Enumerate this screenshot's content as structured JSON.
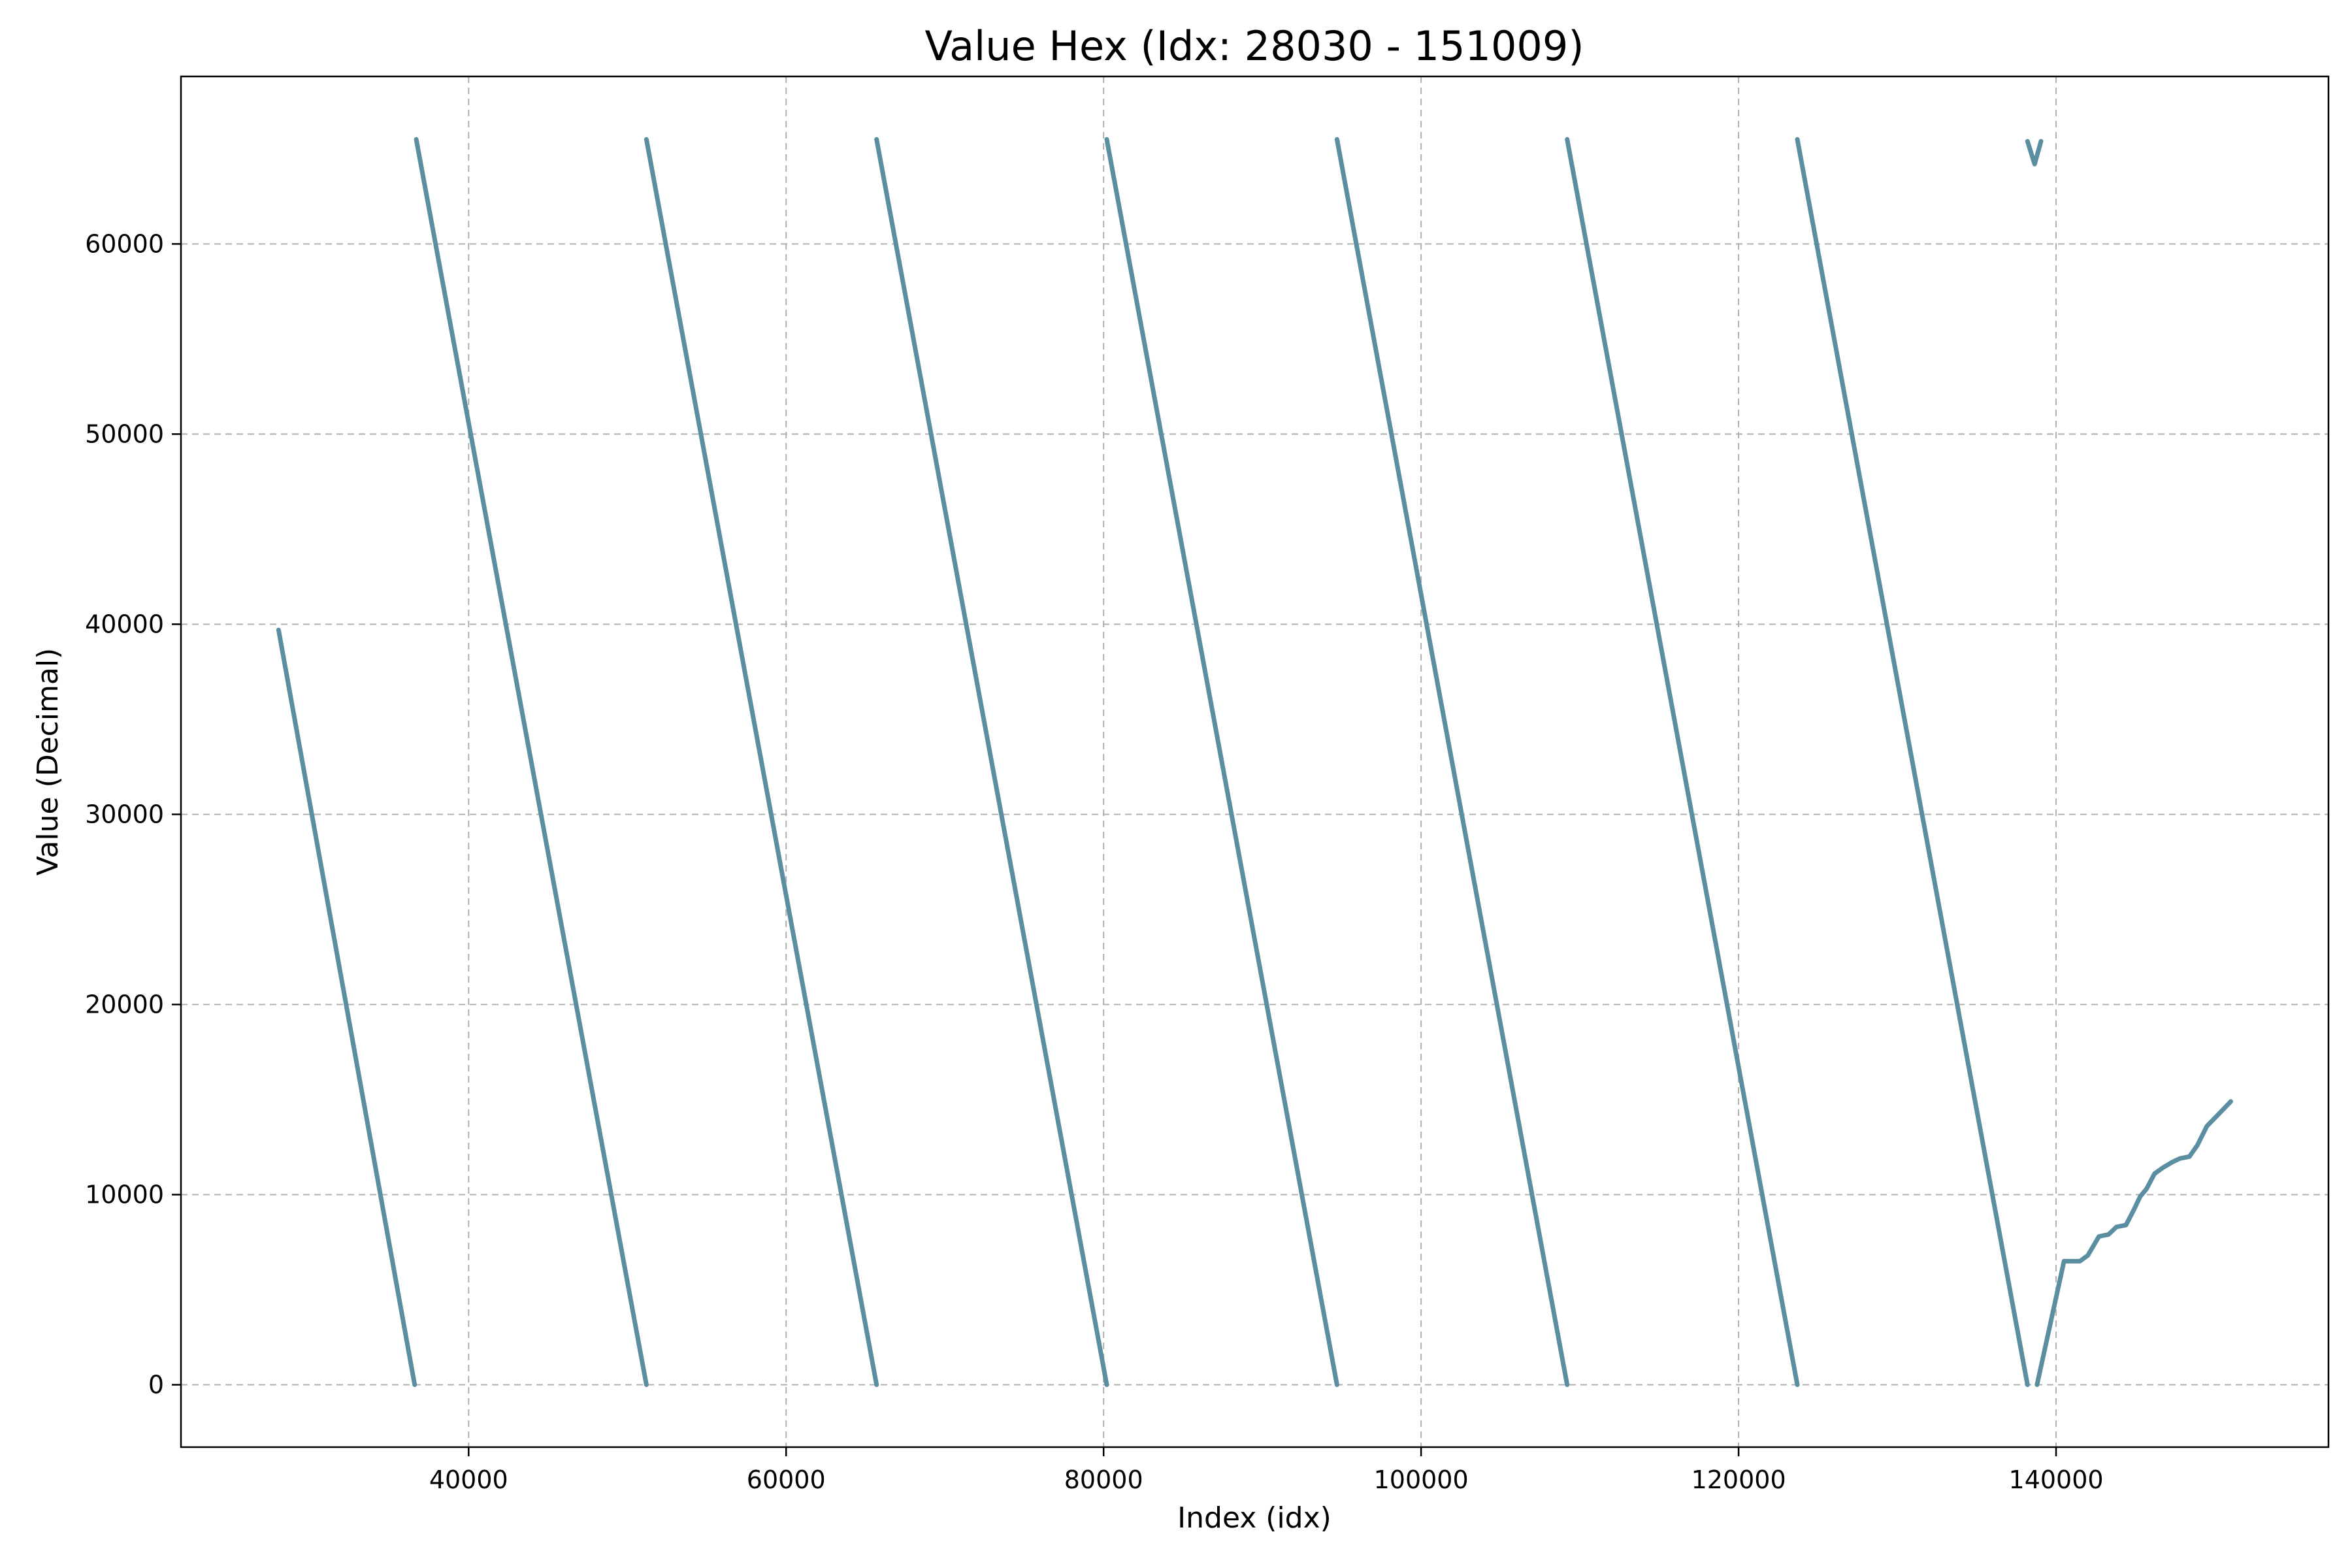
{
  "chart_data": {
    "type": "line",
    "title": "Value Hex (Idx: 28030 - 151009)",
    "xlabel": "Index (idx)",
    "ylabel": "Value (Decimal)",
    "xlim": [
      21880,
      157160
    ],
    "ylim": [
      -3280,
      68810
    ],
    "xticks": [
      40000,
      60000,
      80000,
      100000,
      120000,
      140000
    ],
    "yticks": [
      0,
      10000,
      20000,
      30000,
      40000,
      50000,
      60000
    ],
    "grid": true,
    "color": "#5a8ea0",
    "series": [
      {
        "segments": [
          [
            [
              28030,
              39700
            ],
            [
              36600,
              0
            ]
          ],
          [
            [
              36700,
              65500
            ],
            [
              51200,
              0
            ]
          ],
          [
            [
              51200,
              65500
            ],
            [
              65700,
              0
            ]
          ],
          [
            [
              65700,
              65500
            ],
            [
              80200,
              0
            ]
          ],
          [
            [
              80200,
              65500
            ],
            [
              94700,
              0
            ]
          ],
          [
            [
              94700,
              65500
            ],
            [
              109200,
              0
            ]
          ],
          [
            [
              109200,
              65500
            ],
            [
              123700,
              0
            ]
          ],
          [
            [
              123700,
              65500
            ],
            [
              138200,
              0
            ]
          ],
          [
            [
              138200,
              65400
            ],
            [
              138650,
              64200
            ],
            [
              139050,
              65400
            ]
          ],
          [
            [
              138800,
              0
            ],
            [
              140500,
              6500
            ],
            [
              141500,
              6500
            ],
            [
              142000,
              6800
            ],
            [
              142700,
              7800
            ],
            [
              143300,
              7900
            ],
            [
              143800,
              8300
            ],
            [
              144400,
              8400
            ],
            [
              144900,
              9200
            ],
            [
              145300,
              9900
            ],
            [
              145700,
              10300
            ],
            [
              146200,
              11100
            ],
            [
              146700,
              11400
            ],
            [
              147300,
              11700
            ],
            [
              147800,
              11900
            ],
            [
              148400,
              12000
            ],
            [
              148900,
              12600
            ],
            [
              149500,
              13600
            ],
            [
              150200,
              14200
            ],
            [
              151009,
              14900
            ]
          ]
        ]
      }
    ]
  }
}
